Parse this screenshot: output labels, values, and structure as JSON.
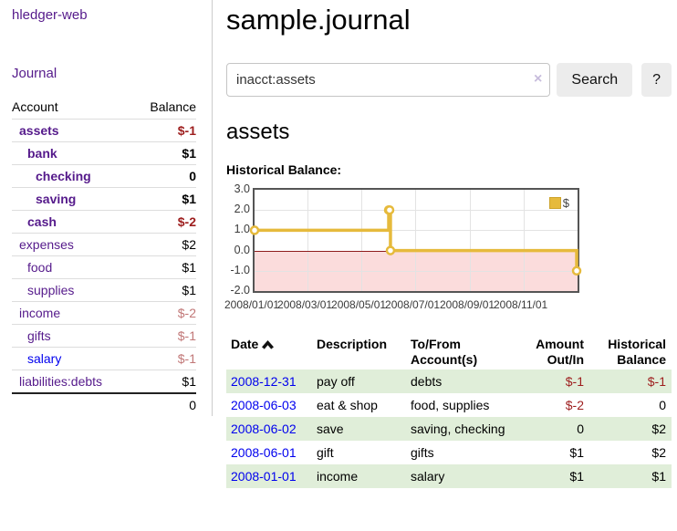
{
  "app": {
    "brand": "hledger-web",
    "nav_journal": "Journal"
  },
  "sidebar": {
    "headers": {
      "account": "Account",
      "balance": "Balance"
    },
    "accounts": [
      {
        "label": "assets",
        "balance": "$-1",
        "depth": 1,
        "bold": true,
        "link": "purple",
        "tone": "neg-strong"
      },
      {
        "label": "bank",
        "balance": "$1",
        "depth": 2,
        "bold": true,
        "link": "purple",
        "tone": "normal"
      },
      {
        "label": "checking",
        "balance": "0",
        "depth": 3,
        "bold": true,
        "link": "purple",
        "tone": "normal"
      },
      {
        "label": "saving",
        "balance": "$1",
        "depth": 3,
        "bold": true,
        "link": "purple",
        "tone": "normal"
      },
      {
        "label": "cash",
        "balance": "$-2",
        "depth": 2,
        "bold": true,
        "link": "purple",
        "tone": "neg-strong"
      },
      {
        "label": "expenses",
        "balance": "$2",
        "depth": 1,
        "bold": false,
        "link": "purple",
        "tone": "normal"
      },
      {
        "label": "food",
        "balance": "$1",
        "depth": 2,
        "bold": false,
        "link": "purple",
        "tone": "normal"
      },
      {
        "label": "supplies",
        "balance": "$1",
        "depth": 2,
        "bold": false,
        "link": "purple",
        "tone": "normal"
      },
      {
        "label": "income",
        "balance": "$-2",
        "depth": 1,
        "bold": false,
        "link": "purple",
        "tone": "neg-muted"
      },
      {
        "label": "gifts",
        "balance": "$-1",
        "depth": 2,
        "bold": false,
        "link": "purple",
        "tone": "neg-muted"
      },
      {
        "label": "salary",
        "balance": "$-1",
        "depth": 2,
        "bold": false,
        "link": "blue",
        "tone": "neg-muted"
      },
      {
        "label": "liabilities:debts",
        "balance": "$1",
        "depth": 1,
        "bold": false,
        "link": "purple",
        "tone": "normal"
      }
    ],
    "total": "0"
  },
  "header": {
    "title": "sample.journal"
  },
  "search": {
    "value": "inacct:assets",
    "clear_icon": "×",
    "button_label": "Search",
    "help_label": "?"
  },
  "account_view": {
    "heading": "assets",
    "chart_label": "Historical Balance:"
  },
  "chart_data": {
    "type": "line",
    "step": true,
    "title": "Historical Balance:",
    "legend": [
      {
        "label": "$",
        "color": "#e6ba3c"
      }
    ],
    "x_range": [
      "2008-01-01",
      "2009-01-01"
    ],
    "y_range": [
      -2,
      3
    ],
    "y_ticks": [
      {
        "v": 3,
        "label": "3.0"
      },
      {
        "v": 2,
        "label": "2.0"
      },
      {
        "v": 1,
        "label": "1.0"
      },
      {
        "v": 0,
        "label": "0.0"
      },
      {
        "v": -1,
        "label": "-1.0"
      },
      {
        "v": -2,
        "label": "-2.0"
      }
    ],
    "x_ticks": [
      {
        "date": "2008-01-01",
        "label": "2008/01/01"
      },
      {
        "date": "2008-03-01",
        "label": "2008/03/01"
      },
      {
        "date": "2008-05-01",
        "label": "2008/05/01"
      },
      {
        "date": "2008-07-01",
        "label": "2008/07/01"
      },
      {
        "date": "2008-09-01",
        "label": "2008/09/01"
      },
      {
        "date": "2008-11-01",
        "label": "2008/11/01"
      }
    ],
    "series": [
      {
        "name": "$",
        "color": "#e6ba3c",
        "points": [
          [
            "2008-01-01",
            1
          ],
          [
            "2008-06-01",
            2
          ],
          [
            "2008-06-02",
            2
          ],
          [
            "2008-06-03",
            0
          ],
          [
            "2008-12-31",
            -1
          ]
        ]
      }
    ],
    "colors": {
      "negative_fill": "#fbdcdc",
      "zero_line": "#8e1c1c",
      "grid": "#e3e3e3",
      "border": "#555555"
    },
    "grid": true,
    "legend_position": "top-right"
  },
  "register": {
    "headers": {
      "date": "Date",
      "description": "Description",
      "accounts": "To/From Account(s)",
      "amount": "Amount Out/In",
      "balance": "Historical Balance"
    },
    "sort_icon": "chevron-up",
    "rows": [
      {
        "date": "2008-12-31",
        "description": "pay off",
        "accounts": "debts",
        "amount": "$-1",
        "amount_neg": true,
        "balance": "$-1",
        "balance_neg": true
      },
      {
        "date": "2008-06-03",
        "description": "eat & shop",
        "accounts": "food, supplies",
        "amount": "$-2",
        "amount_neg": true,
        "balance": "0",
        "balance_neg": false
      },
      {
        "date": "2008-06-02",
        "description": "save",
        "accounts": "saving, checking",
        "amount": "0",
        "amount_neg": false,
        "balance": "$2",
        "balance_neg": false
      },
      {
        "date": "2008-06-01",
        "description": "gift",
        "accounts": "gifts",
        "amount": "$1",
        "amount_neg": false,
        "balance": "$2",
        "balance_neg": false
      },
      {
        "date": "2008-01-01",
        "description": "income",
        "accounts": "salary",
        "amount": "$1",
        "amount_neg": false,
        "balance": "$1",
        "balance_neg": false
      }
    ]
  }
}
